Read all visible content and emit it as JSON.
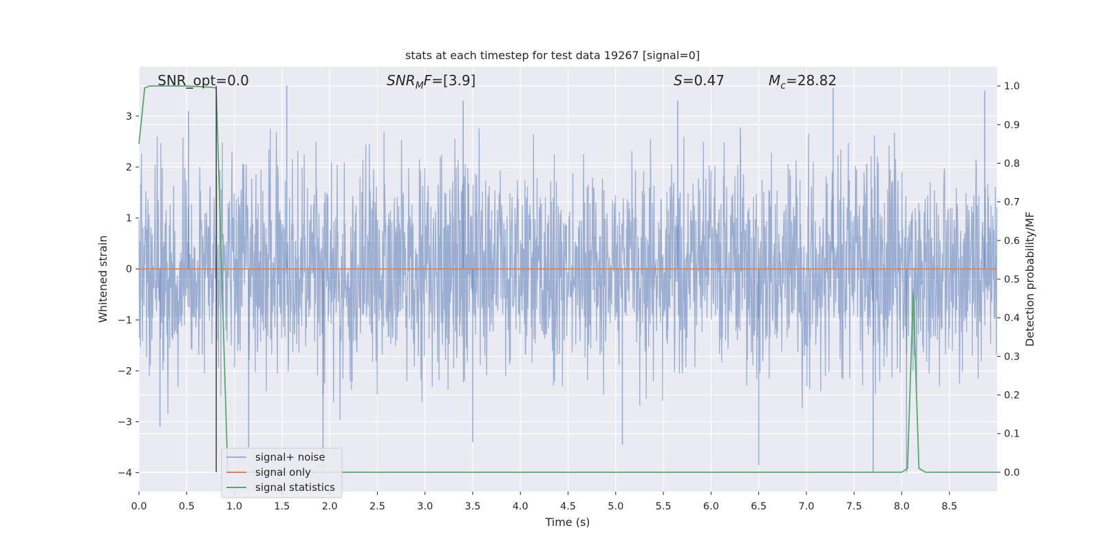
{
  "chart_data": {
    "type": "line",
    "title": "stats at each timestep for test data 19267 [signal=0]",
    "xlabel": "Time (s)",
    "ylabel_left": "Whitened strain",
    "ylabel_right": "Detection probability/MF",
    "xlim": [
      0.0,
      9.0
    ],
    "ylim_left": [
      -4.37,
      3.97
    ],
    "ylim_right": [
      -0.05,
      1.05
    ],
    "x_ticks": [
      "0.0",
      "0.5",
      "1.0",
      "1.5",
      "2.0",
      "2.5",
      "3.0",
      "3.5",
      "4.0",
      "4.5",
      "5.0",
      "5.5",
      "6.0",
      "6.5",
      "7.0",
      "7.5",
      "8.0",
      "8.5"
    ],
    "y_ticks_left": [
      "−4",
      "−3",
      "−2",
      "−1",
      "0",
      "1",
      "2",
      "3"
    ],
    "y_ticks_right": [
      "0.0",
      "0.1",
      "0.2",
      "0.3",
      "0.4",
      "0.5",
      "0.6",
      "0.7",
      "0.8",
      "0.9",
      "1.0"
    ],
    "grid": true,
    "legend_placement": "lower-left",
    "annotations": {
      "snr_opt": "SNR_opt=0.0",
      "snr_mf_italic": "SNR",
      "snr_mf_sub": "M",
      "snr_mf_after_italic": "F",
      "snr_mf_value": "=[3.9]",
      "s_italic": "S",
      "s_value": "=0.47",
      "mc_italic": "M",
      "mc_sub": "c",
      "mc_value": "=28.82"
    },
    "vertical_marker_x": 0.81,
    "series": [
      {
        "name": "signal+ noise",
        "axis": "left",
        "color": "#4c72b0",
        "description_values": {
          "mean": 0.0,
          "std": 1.0,
          "n_points": 9000
        },
        "notable_spikes": [
          {
            "x": 0.22,
            "y": -3.1
          },
          {
            "x": 0.52,
            "y": 3.1
          },
          {
            "x": 1.15,
            "y": -3.5
          },
          {
            "x": 1.55,
            "y": 3.6
          },
          {
            "x": 1.93,
            "y": -3.9
          },
          {
            "x": 3.4,
            "y": 3.3
          },
          {
            "x": 3.5,
            "y": -3.4
          },
          {
            "x": 5.07,
            "y": -3.45
          },
          {
            "x": 5.65,
            "y": 3.3
          },
          {
            "x": 6.5,
            "y": -3.85
          },
          {
            "x": 7.28,
            "y": 3.55
          },
          {
            "x": 7.7,
            "y": -4.0
          },
          {
            "x": 8.05,
            "y": -4.0
          },
          {
            "x": 8.87,
            "y": 3.5
          }
        ]
      },
      {
        "name": "signal only",
        "axis": "left",
        "color": "#dd8452",
        "x": [
          0.0,
          9.0
        ],
        "y": [
          0.0,
          0.0
        ]
      },
      {
        "name": "signal statistics",
        "axis": "right",
        "color": "#55a868",
        "x": [
          0.0,
          0.06,
          0.11,
          0.5,
          0.75,
          0.81,
          0.93,
          1.0,
          8.0,
          8.06,
          8.12,
          8.18,
          8.25,
          9.0
        ],
        "y": [
          0.85,
          0.995,
          1.0,
          1.0,
          0.997,
          0.995,
          0.0,
          0.0,
          0.0,
          0.01,
          0.465,
          0.01,
          0.0,
          0.0
        ]
      }
    ]
  }
}
